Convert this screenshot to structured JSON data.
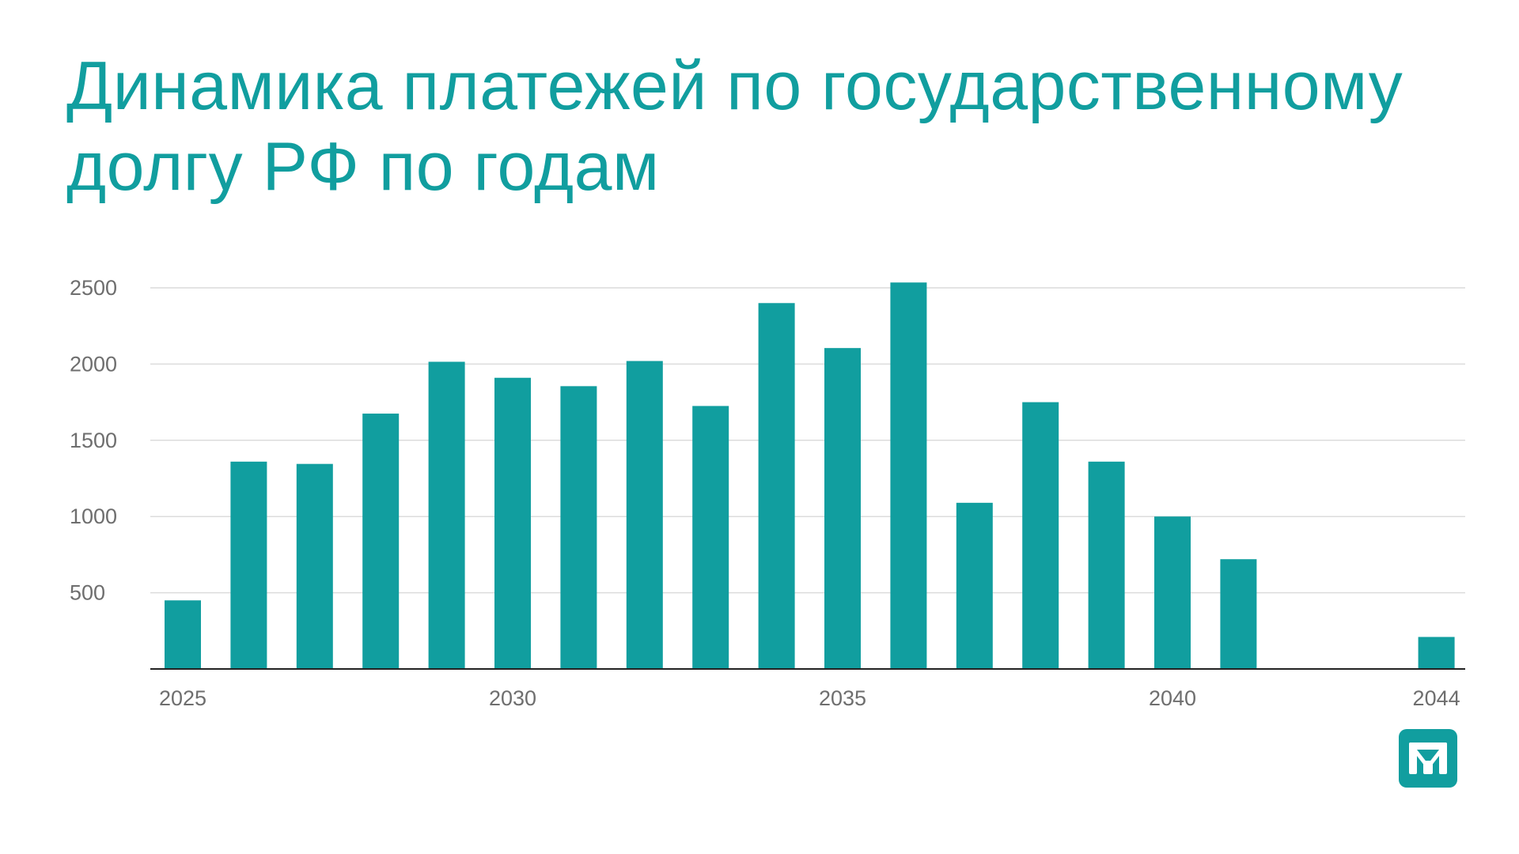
{
  "title": "Динамика платежей по государственному долгу РФ по годам",
  "colors": {
    "accent": "#119e9f",
    "grid": "#dcdcdc",
    "axis": "#222222",
    "tick_text": "#6e6e6e"
  },
  "logo": {
    "icon": "brand-logo-icon"
  },
  "chart_data": {
    "type": "bar",
    "title": "Динамика платежей по государственному долгу РФ по годам",
    "xlabel": "",
    "ylabel": "",
    "ylim": [
      0,
      2500
    ],
    "grid": true,
    "legend": "none",
    "y_ticks": [
      500,
      1000,
      1500,
      2000,
      2500
    ],
    "x_tick_labels": [
      "2025",
      "2030",
      "2035",
      "2040",
      "2044"
    ],
    "categories": [
      2025,
      2026,
      2027,
      2028,
      2029,
      2030,
      2031,
      2032,
      2033,
      2034,
      2035,
      2036,
      2037,
      2038,
      2039,
      2040,
      2041,
      2042,
      2043,
      2044
    ],
    "values": [
      450,
      1360,
      1345,
      1675,
      2015,
      1910,
      1855,
      2020,
      1725,
      2400,
      2105,
      2535,
      1090,
      1750,
      1360,
      1000,
      720,
      0,
      0,
      210
    ]
  }
}
